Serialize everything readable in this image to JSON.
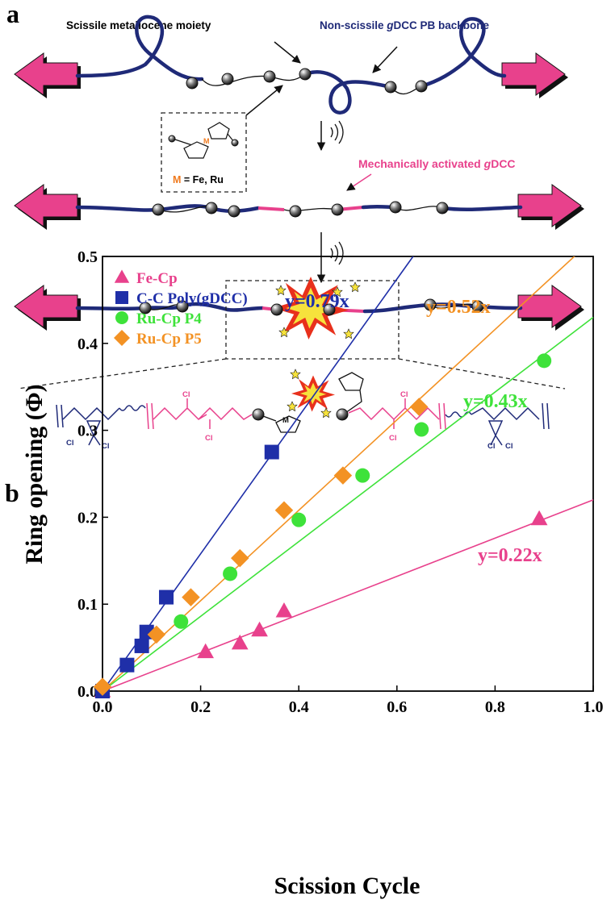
{
  "panel_a": {
    "label": "a",
    "scissile_label": "Scissile metallocene moiety",
    "nonscissile_label": [
      "Non-scissile ",
      "g",
      "DCC PB backbone"
    ],
    "metal_label": "M",
    "metal_def": [
      " M",
      " = Fe, Ru"
    ],
    "activated_label": [
      "Mechanically activated ",
      "g",
      "DCC"
    ],
    "chem_labels": [
      "Cl",
      "Cl",
      "Cl",
      "Cl",
      "M",
      "Cl",
      "Cl",
      "Cl",
      "Cl"
    ]
  },
  "chart_data": {
    "type": "scatter",
    "panel_label": "b",
    "x_label": "Scission Cycle",
    "y_label": "Ring opening (Φ)",
    "xlim": [
      0,
      1
    ],
    "ylim": [
      0,
      0.5
    ],
    "xticks": [
      {
        "value": 0,
        "label": "0.0"
      },
      0.2,
      0.4,
      0.6,
      0.8,
      {
        "value": 1,
        "label": "1.0"
      }
    ],
    "yticks": [
      {
        "value": 0,
        "label": "0.0"
      },
      0.1,
      0.2,
      0.3,
      0.4,
      0.5
    ],
    "legend": "upper left",
    "series": [
      {
        "name": "Fe-Cp",
        "color": "#e8418c",
        "marker": "triangle",
        "x": [
          0,
          0.21,
          0.28,
          0.32,
          0.37,
          0.89
        ],
        "values": [
          0,
          0.045,
          0.055,
          0.07,
          0.092,
          0.198
        ]
      },
      {
        "name": "C-C Poly(gDCC)",
        "color": "#1f2fa8",
        "marker": "square",
        "x": [
          0,
          0.05,
          0.08,
          0.09,
          0.13,
          0.345
        ],
        "values": [
          0,
          0.03,
          0.052,
          0.068,
          0.108,
          0.275
        ]
      },
      {
        "name": "Ru-Cp P4",
        "color": "#3ee23a",
        "marker": "circle",
        "x": [
          0.16,
          0.26,
          0.4,
          0.53,
          0.65,
          0.9
        ],
        "values": [
          0.08,
          0.135,
          0.197,
          0.248,
          0.301,
          0.38
        ]
      },
      {
        "name": "Ru-Cp P5",
        "color": "#f39224",
        "marker": "diamond",
        "x": [
          0,
          0.11,
          0.18,
          0.28,
          0.37,
          0.49,
          0.645
        ],
        "values": [
          0.005,
          0.065,
          0.108,
          0.153,
          0.208,
          0.248,
          0.327
        ]
      }
    ],
    "fits": [
      {
        "label": "y=0.79x",
        "slope": 0.79,
        "color": "#1f2fa8"
      },
      {
        "label": "y=0.52x",
        "slope": 0.52,
        "color": "#f39224"
      },
      {
        "label": "y=0.43x",
        "slope": 0.43,
        "color": "#3ee23a"
      },
      {
        "label": "y=0.22x",
        "slope": 0.22,
        "color": "#e8418c"
      }
    ]
  }
}
